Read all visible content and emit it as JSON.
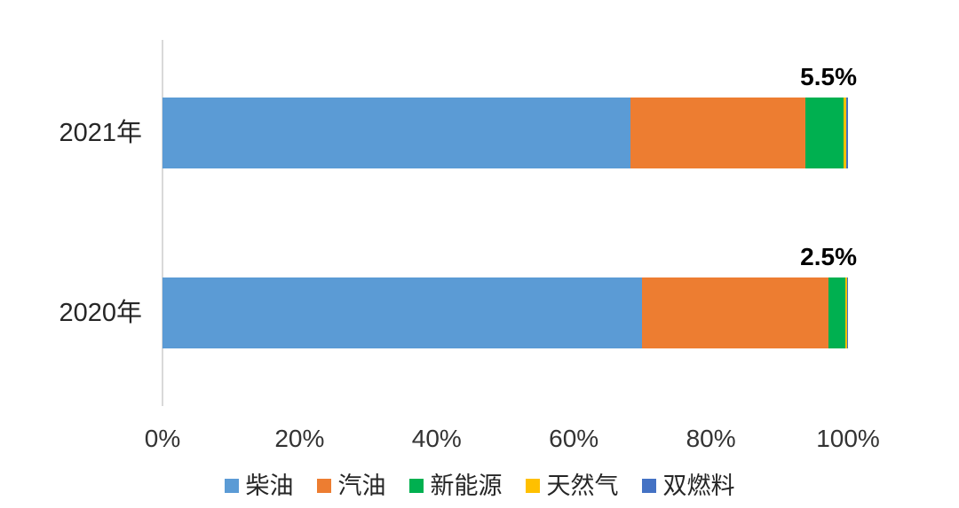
{
  "chart_data": {
    "type": "bar",
    "orientation": "horizontal",
    "stacked": true,
    "grid": false,
    "categories": [
      "2021年",
      "2020年"
    ],
    "series": [
      {
        "id": "diesel",
        "name": "柴油",
        "color": "#5b9bd5",
        "values": [
          68.2,
          69.9
        ]
      },
      {
        "id": "gasoline",
        "name": "汽油",
        "color": "#ed7d31",
        "values": [
          25.6,
          27.2
        ]
      },
      {
        "id": "new-energy",
        "name": "新能源",
        "color": "#00b050",
        "values": [
          5.5,
          2.5
        ]
      },
      {
        "id": "natural-gas",
        "name": "天然气",
        "color": "#ffc000",
        "values": [
          0.5,
          0.3
        ]
      },
      {
        "id": "dual-fuel",
        "name": "双燃料",
        "color": "#4472c4",
        "values": [
          0.2,
          0.1
        ]
      }
    ],
    "data_labels": [
      {
        "category": "2021年",
        "series": "新能源",
        "text": "5.5%"
      },
      {
        "category": "2020年",
        "series": "新能源",
        "text": "2.5%"
      }
    ],
    "x_axis": {
      "range": [
        0,
        100
      ],
      "ticks": [
        "0%",
        "20%",
        "40%",
        "60%",
        "80%",
        "100%"
      ]
    },
    "legend": {
      "position": "bottom",
      "entries": [
        "柴油",
        "汽油",
        "新能源",
        "天然气",
        "双燃料"
      ]
    }
  },
  "colors": {
    "background": "#ffffff",
    "axis_line": "#d9d9d9",
    "tick_text": "#333333",
    "category_text": "#262626",
    "data_label_text": "#000000"
  }
}
